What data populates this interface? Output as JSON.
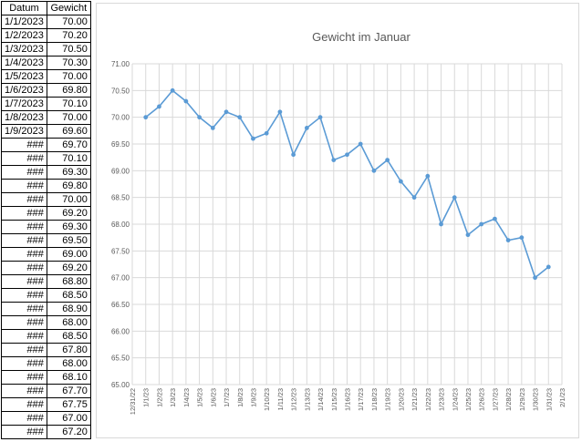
{
  "table": {
    "headers": [
      "Datum",
      "Gewicht"
    ],
    "rows": [
      [
        "1/1/2023",
        "70.00"
      ],
      [
        "1/2/2023",
        "70.20"
      ],
      [
        "1/3/2023",
        "70.50"
      ],
      [
        "1/4/2023",
        "70.30"
      ],
      [
        "1/5/2023",
        "70.00"
      ],
      [
        "1/6/2023",
        "69.80"
      ],
      [
        "1/7/2023",
        "70.10"
      ],
      [
        "1/8/2023",
        "70.00"
      ],
      [
        "1/9/2023",
        "69.60"
      ],
      [
        "###",
        "69.70"
      ],
      [
        "###",
        "70.10"
      ],
      [
        "###",
        "69.30"
      ],
      [
        "###",
        "69.80"
      ],
      [
        "###",
        "70.00"
      ],
      [
        "###",
        "69.20"
      ],
      [
        "###",
        "69.30"
      ],
      [
        "###",
        "69.50"
      ],
      [
        "###",
        "69.00"
      ],
      [
        "###",
        "69.20"
      ],
      [
        "###",
        "68.80"
      ],
      [
        "###",
        "68.50"
      ],
      [
        "###",
        "68.90"
      ],
      [
        "###",
        "68.00"
      ],
      [
        "###",
        "68.50"
      ],
      [
        "###",
        "67.80"
      ],
      [
        "###",
        "68.00"
      ],
      [
        "###",
        "68.10"
      ],
      [
        "###",
        "67.70"
      ],
      [
        "###",
        "67.75"
      ],
      [
        "###",
        "67.00"
      ],
      [
        "###",
        "67.20"
      ]
    ]
  },
  "chart_data": {
    "type": "line",
    "title": "Gewicht im Januar",
    "xlabel": "",
    "ylabel": "",
    "ylim": [
      65.0,
      71.0
    ],
    "yticks": [
      "65.00",
      "65.50",
      "66.00",
      "66.50",
      "67.00",
      "67.50",
      "68.00",
      "68.50",
      "69.00",
      "69.50",
      "70.00",
      "70.50",
      "71.00"
    ],
    "xticks": [
      "12/31/22",
      "1/1/23",
      "1/2/23",
      "1/3/23",
      "1/4/23",
      "1/5/23",
      "1/6/23",
      "1/7/23",
      "1/8/23",
      "1/9/23",
      "1/10/23",
      "1/11/23",
      "1/12/23",
      "1/13/23",
      "1/14/23",
      "1/15/23",
      "1/16/23",
      "1/17/23",
      "1/18/23",
      "1/19/23",
      "1/20/23",
      "1/21/23",
      "1/22/23",
      "1/23/23",
      "1/24/23",
      "1/25/23",
      "1/26/23",
      "1/27/23",
      "1/28/23",
      "1/29/23",
      "1/30/23",
      "1/31/23",
      "2/1/23"
    ],
    "grid": true,
    "series": [
      {
        "x": [
          "1/1/23",
          "1/2/23",
          "1/3/23",
          "1/4/23",
          "1/5/23",
          "1/6/23",
          "1/7/23",
          "1/8/23",
          "1/9/23",
          "1/10/23",
          "1/11/23",
          "1/12/23",
          "1/13/23",
          "1/14/23",
          "1/15/23",
          "1/16/23",
          "1/17/23",
          "1/18/23",
          "1/19/23",
          "1/20/23",
          "1/21/23",
          "1/22/23",
          "1/23/23",
          "1/24/23",
          "1/25/23",
          "1/26/23",
          "1/27/23",
          "1/28/23",
          "1/29/23",
          "1/30/23",
          "1/31/23"
        ],
        "values": [
          70.0,
          70.2,
          70.5,
          70.3,
          70.0,
          69.8,
          70.1,
          70.0,
          69.6,
          69.7,
          70.1,
          69.3,
          69.8,
          70.0,
          69.2,
          69.3,
          69.5,
          69.0,
          69.2,
          68.8,
          68.5,
          68.9,
          68.0,
          68.5,
          67.8,
          68.0,
          68.1,
          67.7,
          67.75,
          67.0,
          67.2
        ]
      }
    ],
    "colors": {
      "line": "#5b9bd5",
      "grid": "#d9d9d9",
      "axis_text": "#595959"
    }
  }
}
